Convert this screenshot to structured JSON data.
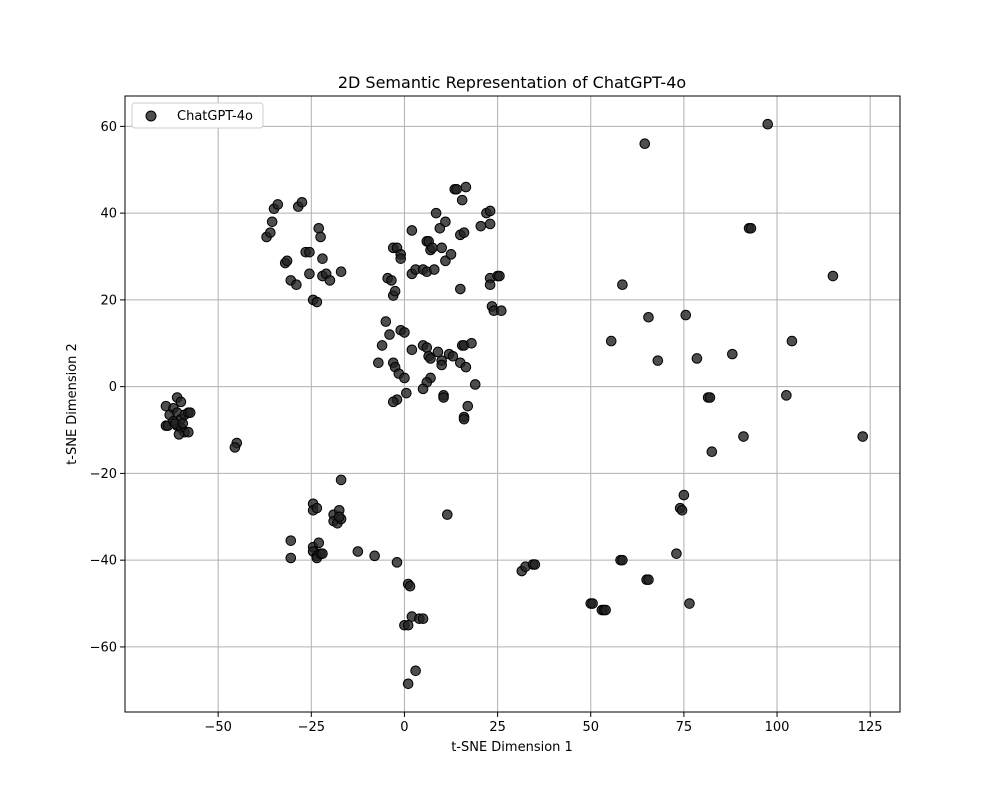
{
  "chart_data": {
    "type": "scatter",
    "title": "2D Semantic Representation of ChatGPT-4o",
    "xlabel": "t-SNE Dimension 1",
    "ylabel": "t-SNE Dimension 2",
    "xlim": [
      -75,
      133
    ],
    "ylim": [
      -75,
      67
    ],
    "x_ticks": [
      -50,
      -25,
      0,
      25,
      50,
      75,
      100,
      125
    ],
    "x_tick_labels": [
      "−50",
      "−25",
      "0",
      "25",
      "50",
      "75",
      "100",
      "125"
    ],
    "y_ticks": [
      -60,
      -40,
      -20,
      0,
      20,
      40,
      60
    ],
    "y_tick_labels": [
      "−60",
      "−40",
      "−20",
      "0",
      "20",
      "40",
      "60"
    ],
    "grid": true,
    "legend_position": "top-left",
    "marker_color": "#222222",
    "series": [
      {
        "name": "ChatGPT-4o",
        "points": [
          [
            -64,
            -4.5
          ],
          [
            -62,
            -5
          ],
          [
            -61,
            -2.5
          ],
          [
            -60,
            -3.5
          ],
          [
            -63,
            -6.5
          ],
          [
            -61,
            -6
          ],
          [
            -60,
            -7.5
          ],
          [
            -59,
            -6.5
          ],
          [
            -58,
            -6
          ],
          [
            -57.5,
            -6
          ],
          [
            -61,
            -9
          ],
          [
            -60,
            -9.5
          ],
          [
            -59,
            -10.5
          ],
          [
            -58,
            -10.5
          ],
          [
            -64,
            -9
          ],
          [
            -63.5,
            -9
          ],
          [
            -62,
            -8
          ],
          [
            -60.5,
            -11
          ],
          [
            -61.5,
            -8.5
          ],
          [
            -59.5,
            -8.5
          ],
          [
            -45,
            -13
          ],
          [
            -45.5,
            -14
          ],
          [
            -37,
            34.5
          ],
          [
            -36,
            35.5
          ],
          [
            -35.5,
            38
          ],
          [
            -35,
            41
          ],
          [
            -34,
            42
          ],
          [
            -32,
            28.5
          ],
          [
            -31.5,
            29
          ],
          [
            -30.5,
            24.5
          ],
          [
            -29,
            23.5
          ],
          [
            -28.5,
            41.5
          ],
          [
            -27.5,
            42.5
          ],
          [
            -26.5,
            31
          ],
          [
            -25.5,
            31
          ],
          [
            -25.5,
            26
          ],
          [
            -24.5,
            20
          ],
          [
            -23.5,
            19.5
          ],
          [
            -23,
            36.5
          ],
          [
            -22.5,
            34.5
          ],
          [
            -22,
            29.5
          ],
          [
            -22,
            25.5
          ],
          [
            -21,
            26
          ],
          [
            -20,
            24.5
          ],
          [
            -17,
            26.5
          ],
          [
            -5,
            15
          ],
          [
            -4,
            12
          ],
          [
            -6,
            9.5
          ],
          [
            -7,
            5.5
          ],
          [
            -3,
            5.5
          ],
          [
            -2.5,
            4.5
          ],
          [
            -1.5,
            3
          ],
          [
            -1,
            13
          ],
          [
            0,
            12.5
          ],
          [
            -2,
            -3
          ],
          [
            -3,
            -3.5
          ],
          [
            0,
            2
          ],
          [
            0.5,
            -1.5
          ],
          [
            2,
            8.5
          ],
          [
            5,
            9.5
          ],
          [
            6,
            9
          ],
          [
            6.5,
            7
          ],
          [
            7,
            6.5
          ],
          [
            7,
            2
          ],
          [
            6,
            1
          ],
          [
            5,
            -0.5
          ],
          [
            9,
            8
          ],
          [
            10,
            6
          ],
          [
            10,
            5
          ],
          [
            10.5,
            -2
          ],
          [
            10.5,
            -2.5
          ],
          [
            12,
            7.5
          ],
          [
            13,
            7
          ],
          [
            15,
            5.5
          ],
          [
            15.5,
            9.5
          ],
          [
            16,
            9.5
          ],
          [
            16.5,
            4.5
          ],
          [
            16,
            -7
          ],
          [
            16,
            -7.5
          ],
          [
            17,
            -4.5
          ],
          [
            18,
            10
          ],
          [
            19,
            0.5
          ],
          [
            -4.5,
            25
          ],
          [
            -3.5,
            24.5
          ],
          [
            -3,
            21
          ],
          [
            -2.5,
            22
          ],
          [
            -3,
            32
          ],
          [
            -2,
            32
          ],
          [
            -1,
            30.5
          ],
          [
            -1,
            29.5
          ],
          [
            2,
            36
          ],
          [
            2,
            26
          ],
          [
            3,
            27
          ],
          [
            5,
            27
          ],
          [
            6,
            26.5
          ],
          [
            6,
            33.5
          ],
          [
            6.5,
            33.5
          ],
          [
            7,
            31.5
          ],
          [
            7.5,
            32
          ],
          [
            8,
            27
          ],
          [
            8.5,
            40
          ],
          [
            9.5,
            36.5
          ],
          [
            10,
            32
          ],
          [
            11,
            38
          ],
          [
            11,
            29
          ],
          [
            12.5,
            30.5
          ],
          [
            13.5,
            45.5
          ],
          [
            14,
            45.5
          ],
          [
            15,
            22.5
          ],
          [
            15,
            35
          ],
          [
            15.5,
            43
          ],
          [
            16,
            35.5
          ],
          [
            16.5,
            46
          ],
          [
            20.5,
            37
          ],
          [
            22,
            40
          ],
          [
            23,
            40.5
          ],
          [
            23,
            37.5
          ],
          [
            23,
            25
          ],
          [
            23,
            23.5
          ],
          [
            23.5,
            18.5
          ],
          [
            24,
            17.5
          ],
          [
            25,
            25.5
          ],
          [
            25.5,
            25.5
          ],
          [
            26,
            17.5
          ],
          [
            -17,
            -21.5
          ],
          [
            -24.5,
            -27
          ],
          [
            -24.5,
            -28.5
          ],
          [
            -23.5,
            -28
          ],
          [
            -19,
            -29.5
          ],
          [
            -19,
            -31
          ],
          [
            -18,
            -31.5
          ],
          [
            -17.5,
            -28.5
          ],
          [
            -17,
            -30.5
          ],
          [
            -17.5,
            -30
          ],
          [
            -30.5,
            -35.5
          ],
          [
            -30.5,
            -39.5
          ],
          [
            -24.5,
            -37
          ],
          [
            -24.5,
            -38
          ],
          [
            -23.5,
            -39
          ],
          [
            -23.5,
            -39.5
          ],
          [
            -23,
            -36
          ],
          [
            -22.5,
            -38.5
          ],
          [
            -22,
            -38.5
          ],
          [
            -12.5,
            -38
          ],
          [
            -8,
            -39
          ],
          [
            -2,
            -40.5
          ],
          [
            1,
            -45.5
          ],
          [
            1.5,
            -46
          ],
          [
            11.5,
            -29.5
          ],
          [
            0,
            -55
          ],
          [
            1,
            -55
          ],
          [
            2,
            -53
          ],
          [
            4,
            -53.5
          ],
          [
            5,
            -53.5
          ],
          [
            3,
            -65.5
          ],
          [
            1,
            -68.5
          ],
          [
            31.5,
            -42.5
          ],
          [
            32.5,
            -41.5
          ],
          [
            34.5,
            -41
          ],
          [
            35,
            -41
          ],
          [
            50,
            -50
          ],
          [
            50.5,
            -50
          ],
          [
            53,
            -51.5
          ],
          [
            53.5,
            -51.5
          ],
          [
            54,
            -51.5
          ],
          [
            58,
            -40
          ],
          [
            58.5,
            -40
          ],
          [
            65,
            -44.5
          ],
          [
            65.5,
            -44.5
          ],
          [
            73,
            -38.5
          ],
          [
            74,
            -28
          ],
          [
            74.5,
            -28.5
          ],
          [
            75,
            -25
          ],
          [
            76.5,
            -50
          ],
          [
            55.5,
            10.5
          ],
          [
            58.5,
            23.5
          ],
          [
            64.5,
            56
          ],
          [
            65.5,
            16
          ],
          [
            68,
            6
          ],
          [
            75.5,
            16.5
          ],
          [
            78.5,
            6.5
          ],
          [
            81.5,
            -2.5
          ],
          [
            82,
            -2.5
          ],
          [
            82.5,
            -15
          ],
          [
            88,
            7.5
          ],
          [
            91,
            -11.5
          ],
          [
            92.5,
            36.5
          ],
          [
            93,
            36.5
          ],
          [
            97.5,
            60.5
          ],
          [
            102.5,
            -2
          ],
          [
            104,
            10.5
          ],
          [
            115,
            25.5
          ],
          [
            123,
            -11.5
          ]
        ]
      }
    ]
  }
}
